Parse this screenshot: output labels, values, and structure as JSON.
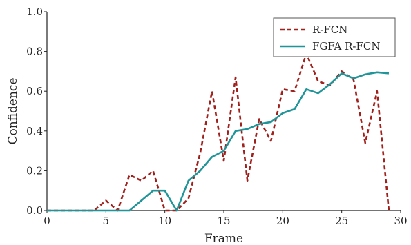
{
  "chart_data": {
    "type": "line",
    "xlabel": "Frame",
    "ylabel": "Confidence",
    "xlim": [
      0,
      30
    ],
    "ylim": [
      0,
      1.0
    ],
    "xticks": [
      0,
      5,
      10,
      15,
      20,
      25,
      30
    ],
    "yticks": [
      0.0,
      0.2,
      0.4,
      0.6,
      0.8,
      1.0
    ],
    "ytick_labels": [
      "0.0",
      "0.2",
      "0.4",
      "0.6",
      "0.8",
      "1.0"
    ],
    "grid": false,
    "legend_position": "top-right",
    "series": [
      {
        "name": "R-FCN",
        "color": "#a0201c",
        "style": "dashed",
        "x": [
          0,
          1,
          2,
          3,
          4,
          5,
          6,
          7,
          8,
          9,
          10,
          11,
          12,
          13,
          14,
          15,
          16,
          17,
          18,
          19,
          20,
          21,
          22,
          23,
          24,
          25,
          26,
          27,
          28,
          29
        ],
        "y": [
          0,
          0,
          0,
          0,
          0,
          0.05,
          0,
          0.18,
          0.15,
          0.2,
          0,
          0,
          0.06,
          0.29,
          0.6,
          0.25,
          0.67,
          0.15,
          0.46,
          0.35,
          0.61,
          0.6,
          0.79,
          0.65,
          0.63,
          0.7,
          0.66,
          0.34,
          0.6,
          0
        ]
      },
      {
        "name": "FGFA R-FCN",
        "color": "#1f9599",
        "style": "solid",
        "x": [
          0,
          1,
          2,
          3,
          4,
          5,
          6,
          7,
          8,
          9,
          10,
          11,
          12,
          13,
          14,
          15,
          16,
          17,
          18,
          19,
          20,
          21,
          22,
          23,
          24,
          25,
          26,
          27,
          28,
          29
        ],
        "y": [
          0,
          0,
          0,
          0,
          0,
          0,
          0,
          0,
          0.05,
          0.1,
          0.1,
          0,
          0.15,
          0.2,
          0.27,
          0.3,
          0.4,
          0.41,
          0.435,
          0.445,
          0.49,
          0.51,
          0.61,
          0.59,
          0.635,
          0.69,
          0.665,
          0.685,
          0.695,
          0.69
        ]
      }
    ]
  }
}
